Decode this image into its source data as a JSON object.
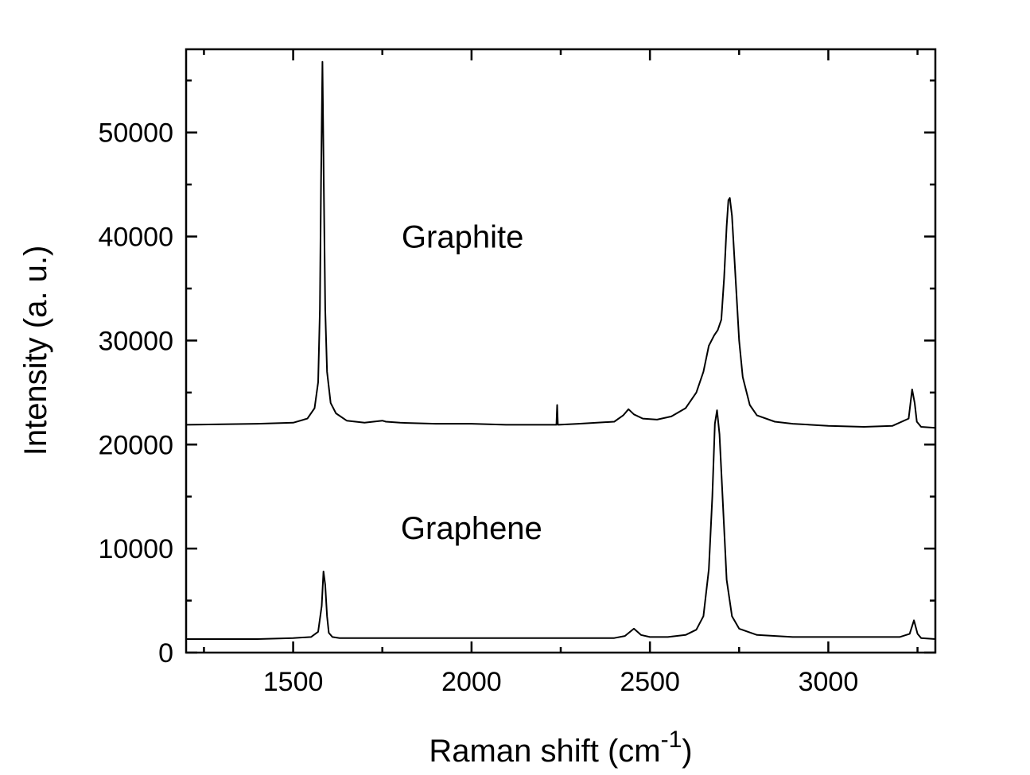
{
  "chart_data": {
    "type": "line",
    "xlabel": "Raman shift (cm",
    "xlabel_superscript": "-1",
    "xlabel_suffix": ")",
    "ylabel": "Intensity (a. u.)",
    "xlim": [
      1200,
      3300
    ],
    "ylim": [
      0,
      58000
    ],
    "x_ticks": [
      1500,
      2000,
      2500,
      3000
    ],
    "x_tick_labels": [
      "1500",
      "2000",
      "2500",
      "3000"
    ],
    "y_ticks": [
      0,
      10000,
      20000,
      30000,
      40000,
      50000
    ],
    "y_tick_labels": [
      "0",
      "10000",
      "20000",
      "30000",
      "40000",
      "50000"
    ],
    "grid": false,
    "annotations": [
      {
        "text": "Graphite",
        "x": 1975,
        "y": 40000
      },
      {
        "text": "Graphene",
        "x": 2000,
        "y": 12000
      }
    ],
    "series": [
      {
        "x": [
          1200,
          1300,
          1400,
          1500,
          1540,
          1560,
          1570,
          1575,
          1578,
          1582,
          1586,
          1590,
          1595,
          1605,
          1620,
          1650,
          1700,
          1750,
          1760,
          1800,
          1900,
          2000,
          2100,
          2200,
          2238,
          2240,
          2242,
          2244,
          2300,
          2400,
          2425,
          2440,
          2455,
          2480,
          2520,
          2560,
          2600,
          2630,
          2650,
          2665,
          2680,
          2690,
          2700,
          2708,
          2715,
          2720,
          2724,
          2730,
          2740,
          2750,
          2760,
          2780,
          2800,
          2850,
          2900,
          3000,
          3100,
          3180,
          3225,
          3235,
          3242,
          3248,
          3260,
          3300
        ],
        "values": [
          21900,
          21950,
          22000,
          22100,
          22500,
          23500,
          26000,
          33000,
          45000,
          56800,
          45000,
          33000,
          27000,
          24000,
          23000,
          22300,
          22100,
          22300,
          22200,
          22100,
          22000,
          22000,
          21900,
          21900,
          21900,
          23800,
          21900,
          21900,
          22000,
          22200,
          22800,
          23400,
          22900,
          22500,
          22400,
          22700,
          23500,
          25000,
          27000,
          29500,
          30500,
          31000,
          32000,
          36000,
          41000,
          43500,
          43700,
          42000,
          36000,
          30000,
          26500,
          23800,
          22800,
          22200,
          22000,
          21800,
          21700,
          21800,
          22500,
          25300,
          24000,
          22200,
          21700,
          21600
        ]
      },
      {
        "x": [
          1200,
          1300,
          1400,
          1500,
          1550,
          1570,
          1580,
          1585,
          1590,
          1595,
          1600,
          1610,
          1630,
          1700,
          1800,
          2000,
          2200,
          2400,
          2430,
          2455,
          2475,
          2500,
          2550,
          2600,
          2630,
          2650,
          2665,
          2675,
          2682,
          2688,
          2695,
          2705,
          2715,
          2730,
          2750,
          2800,
          2900,
          3000,
          3100,
          3200,
          3228,
          3240,
          3250,
          3260,
          3300
        ],
        "values": [
          1300,
          1300,
          1300,
          1400,
          1500,
          2000,
          4500,
          7800,
          6500,
          3500,
          1900,
          1500,
          1400,
          1400,
          1400,
          1400,
          1400,
          1400,
          1600,
          2300,
          1700,
          1500,
          1500,
          1700,
          2200,
          3500,
          8000,
          15000,
          22000,
          23300,
          21000,
          14000,
          7000,
          3500,
          2300,
          1700,
          1500,
          1500,
          1500,
          1500,
          1800,
          3100,
          1800,
          1400,
          1300
        ]
      }
    ]
  }
}
